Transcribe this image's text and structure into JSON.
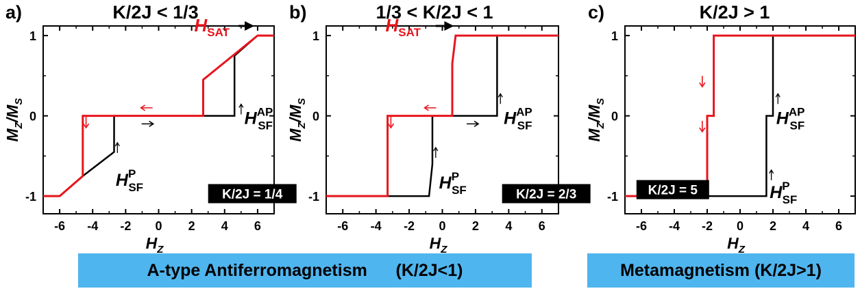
{
  "chart_data": [
    {
      "type": "line",
      "panel_label": "a)",
      "title": "K/2J < 1/3",
      "xlabel": "H",
      "xlabel_sub": "Z",
      "ylabel": "M",
      "ylabel_sub": "Z",
      "ylabel_den": "/M",
      "ylabel_den_sub": "S",
      "xlim": [
        -7,
        7
      ],
      "ylim": [
        -1.22,
        1.12
      ],
      "xticks": [
        "-6",
        "-4",
        "-2",
        "0",
        "2",
        "4",
        "6"
      ],
      "yticks": [
        "-1",
        "0",
        "1"
      ],
      "grid": false,
      "inset_label": "K/2J = 1/4",
      "series": [
        {
          "color": "#000000",
          "x": [
            -7,
            -6,
            -4.6,
            -2.7,
            -2.7,
            2.7,
            4.6,
            4.6,
            6,
            7
          ],
          "y": [
            -1,
            -1,
            -0.75,
            -0.45,
            0,
            0,
            0,
            0.75,
            1,
            1
          ]
        },
        {
          "color": "#e8141c",
          "x": [
            -7,
            -6,
            -4.6,
            -4.6,
            2.7,
            2.7,
            6,
            7
          ],
          "y": [
            -1,
            -1,
            -0.75,
            0,
            0,
            0.45,
            1,
            1
          ]
        }
      ],
      "annotations": {
        "sat": "H",
        "sat_sub": "SAT",
        "sf_ap": "H",
        "sf_ap_sup": "AP",
        "sf_ap_sub": "SF",
        "sf_p": "H",
        "sf_p_sup": "P",
        "sf_p_sub": "SF"
      }
    },
    {
      "type": "line",
      "panel_label": "b)",
      "title": "1/3 < K/2J < 1",
      "xlabel": "H",
      "xlabel_sub": "Z",
      "ylabel": "M",
      "ylabel_sub": "Z",
      "ylabel_den": "/M",
      "ylabel_den_sub": "S",
      "xlim": [
        -7,
        7
      ],
      "ylim": [
        -1.22,
        1.12
      ],
      "xticks": [
        "-6",
        "-4",
        "-2",
        "0",
        "2",
        "4",
        "6"
      ],
      "yticks": [
        "-1",
        "0",
        "1"
      ],
      "grid": false,
      "inset_label": "K/2J = 2/3",
      "series": [
        {
          "color": "#000000",
          "x": [
            -7,
            -0.8,
            -0.6,
            -0.6,
            3.3,
            3.3,
            7
          ],
          "y": [
            -1,
            -1,
            -0.6,
            0,
            0,
            1,
            1
          ]
        },
        {
          "color": "#e8141c",
          "x": [
            -7,
            -3.3,
            -3.3,
            0.6,
            0.6,
            0.8,
            7
          ],
          "y": [
            -1,
            -1,
            0,
            0,
            0.65,
            1,
            1
          ]
        }
      ],
      "annotations": {
        "sat": "H",
        "sat_sub": "SAT",
        "sf_ap": "H",
        "sf_ap_sup": "AP",
        "sf_ap_sub": "SF",
        "sf_p": "H",
        "sf_p_sup": "P",
        "sf_p_sub": "SF"
      }
    },
    {
      "type": "line",
      "panel_label": "c)",
      "title": "K/2J > 1",
      "xlabel": "H",
      "xlabel_sub": "Z",
      "ylabel": "M",
      "ylabel_sub": "Z",
      "ylabel_den": "/M",
      "ylabel_den_sub": "S",
      "xlim": [
        -7,
        7
      ],
      "ylim": [
        -1.22,
        1.12
      ],
      "xticks": [
        "-6",
        "-4",
        "-2",
        "0",
        "2",
        "4",
        "6"
      ],
      "yticks": [
        "-1",
        "0",
        "1"
      ],
      "grid": false,
      "inset_label": "K/2J = 5",
      "series": [
        {
          "color": "#000000",
          "x": [
            -7,
            1.6,
            1.6,
            2.0,
            2.0,
            7
          ],
          "y": [
            -1,
            -1,
            0,
            0,
            1,
            1
          ]
        },
        {
          "color": "#e8141c",
          "x": [
            -7,
            -2.0,
            -2.0,
            -1.6,
            -1.6,
            7
          ],
          "y": [
            -1,
            -1,
            0,
            0,
            1,
            1
          ]
        }
      ],
      "annotations": {
        "sf_ap": "H",
        "sf_ap_sup": "AP",
        "sf_ap_sub": "SF",
        "sf_p": "H",
        "sf_p_sup": "P",
        "sf_p_sub": "SF"
      }
    }
  ],
  "banners": {
    "afm": "A-type Antiferromagnetism      (K/2J<1)",
    "meta": "Metamagnetism (K/2J>1)"
  },
  "colors": {
    "red": "#e8141c",
    "black": "#000000",
    "banner": "#4fb5ee"
  }
}
